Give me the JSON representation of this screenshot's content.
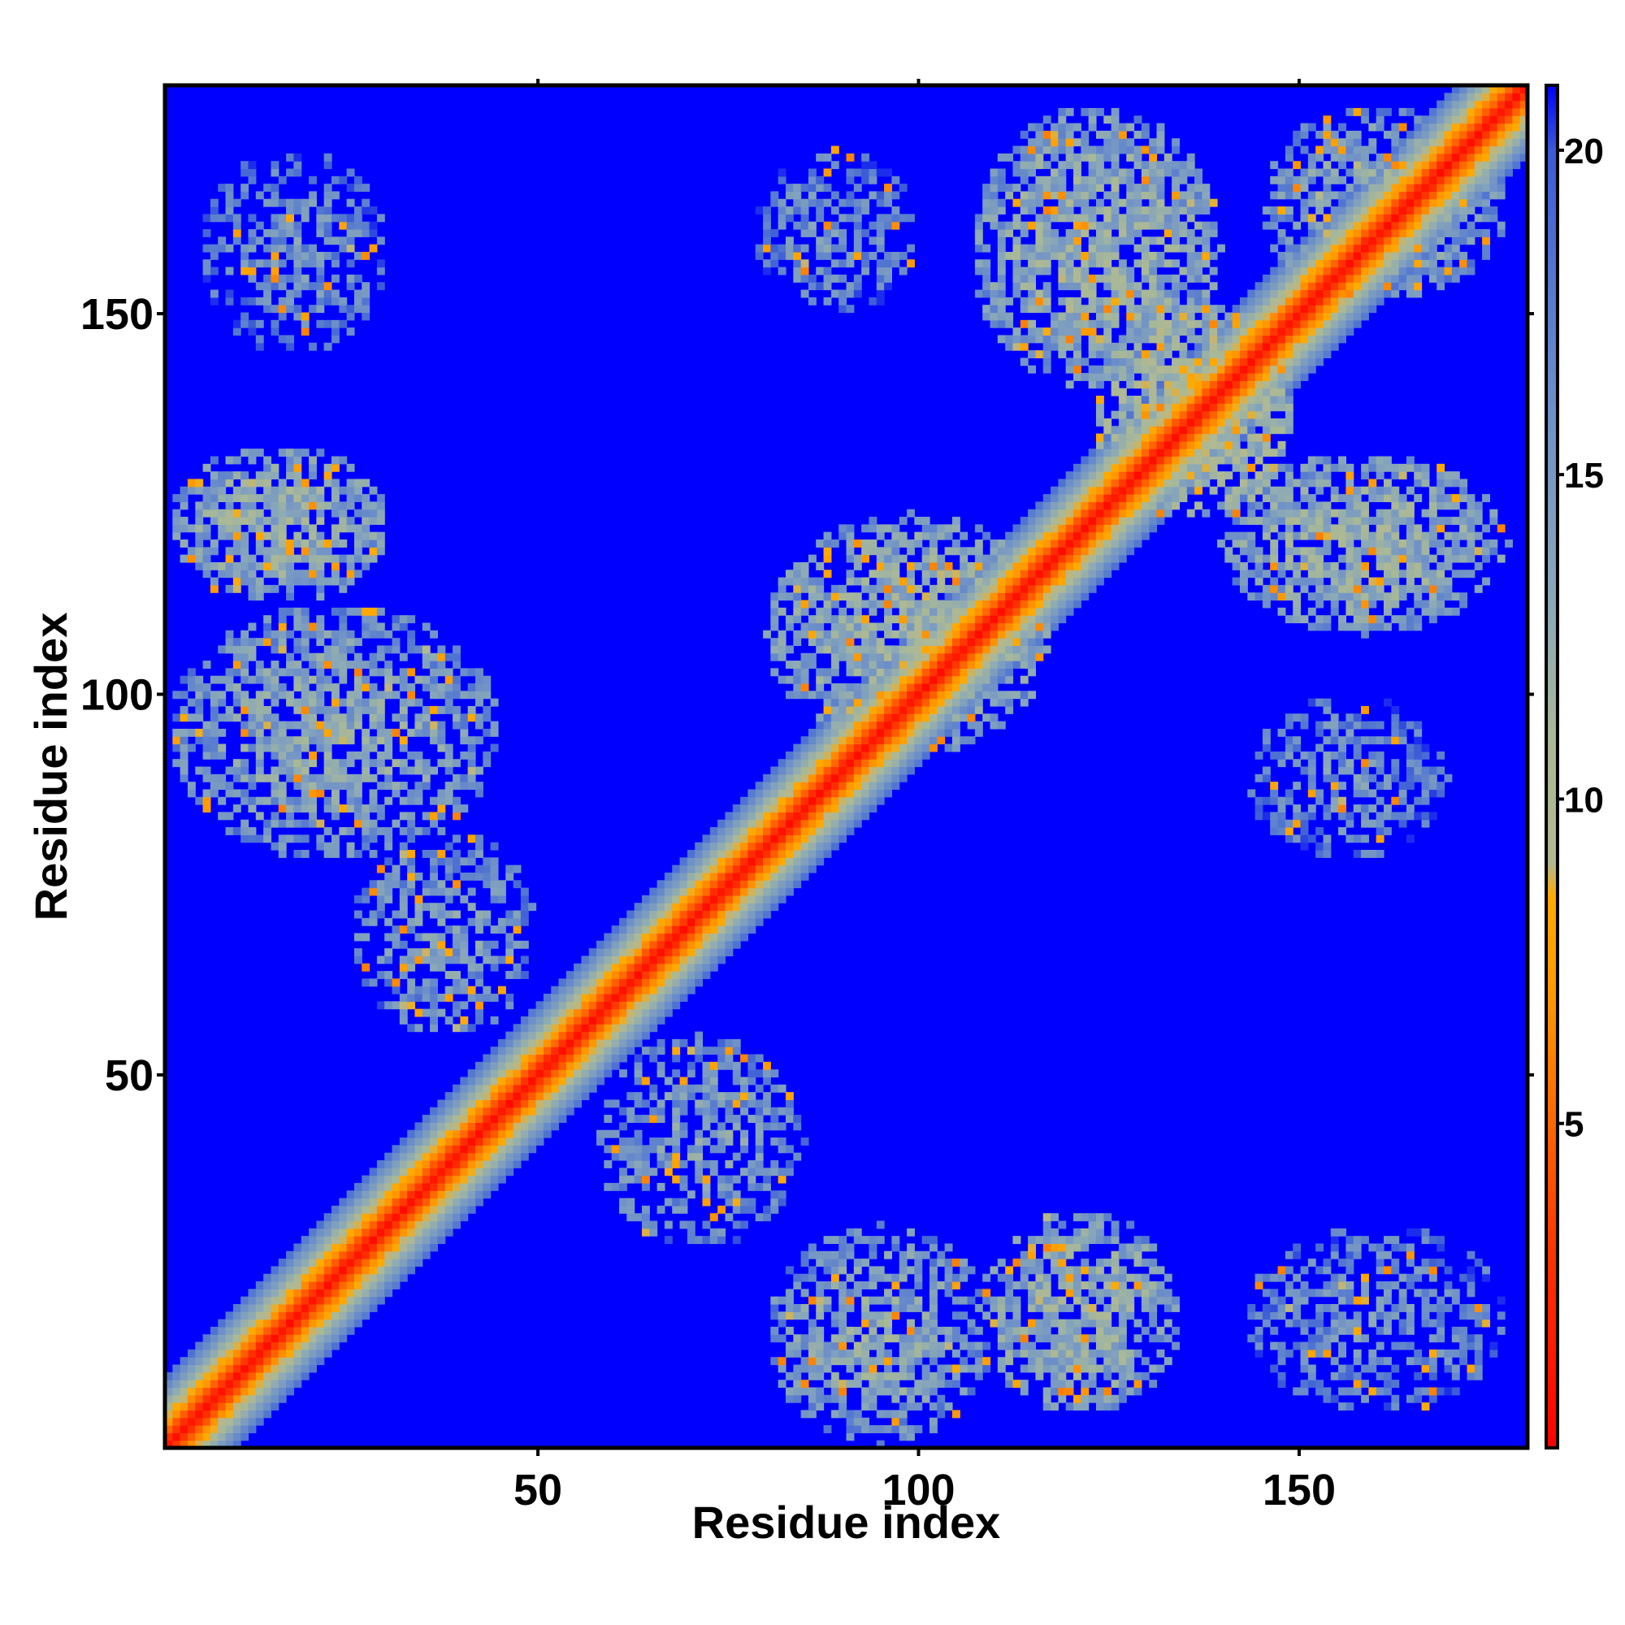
{
  "chart_data": {
    "type": "heatmap",
    "title": "",
    "xlabel": "Residue index",
    "ylabel": "Residue index",
    "xlim": [
      1,
      180
    ],
    "ylim": [
      1,
      180
    ],
    "x_ticks": [
      50,
      100,
      150
    ],
    "y_ticks": [
      50,
      100,
      150
    ],
    "colorbar": {
      "range": [
        0,
        21
      ],
      "ticks": [
        5,
        10,
        15,
        20
      ],
      "colors": [
        {
          "value": 0,
          "color": "#ff0000"
        },
        {
          "value": 3,
          "color": "#ff3300"
        },
        {
          "value": 5,
          "color": "#ff6600"
        },
        {
          "value": 7,
          "color": "#ff9900"
        },
        {
          "value": 8.5,
          "color": "#ffaa00"
        },
        {
          "value": 9,
          "color": "#b4b890"
        },
        {
          "value": 11,
          "color": "#a8b898"
        },
        {
          "value": 13,
          "color": "#8aa8b8"
        },
        {
          "value": 16,
          "color": "#6e90c8"
        },
        {
          "value": 18,
          "color": "#5478d0"
        },
        {
          "value": 20,
          "color": "#3a5ad8"
        },
        {
          "value": 21,
          "color": "#0000ff"
        }
      ]
    },
    "background_value": 21,
    "diagonal_band": {
      "center_value": 1,
      "width_residues": 9
    },
    "contact_regions": [
      {
        "x": [
          5,
          30
        ],
        "y": [
          145,
          172
        ],
        "mean_value": 15.5,
        "density": 0.55
      },
      {
        "x": [
          1,
          30
        ],
        "y": [
          112,
          133
        ],
        "mean_value": 12.5,
        "density": 0.85
      },
      {
        "x": [
          1,
          45
        ],
        "y": [
          78,
          112
        ],
        "mean_value": 13.5,
        "density": 0.75
      },
      {
        "x": [
          25,
          50
        ],
        "y": [
          55,
          82
        ],
        "mean_value": 14.5,
        "density": 0.6
      },
      {
        "x": [
          78,
          100
        ],
        "y": [
          150,
          172
        ],
        "mean_value": 15.5,
        "density": 0.6
      },
      {
        "x": [
          80,
          118
        ],
        "y": [
          92,
          124
        ],
        "mean_value": 12.5,
        "density": 0.8
      },
      {
        "x": [
          107,
          140
        ],
        "y": [
          140,
          178
        ],
        "mean_value": 12.5,
        "density": 0.85
      },
      {
        "x": [
          123,
          150
        ],
        "y": [
          123,
          152
        ],
        "mean_value": 10.5,
        "density": 0.85
      },
      {
        "x": [
          140,
          178
        ],
        "y": [
          108,
          132
        ],
        "mean_value": 12.5,
        "density": 0.85
      },
      {
        "x": [
          145,
          178
        ],
        "y": [
          152,
          178
        ],
        "mean_value": 13.5,
        "density": 0.75
      },
      {
        "x": [
          143,
          170
        ],
        "y": [
          78,
          100
        ],
        "mean_value": 15.5,
        "density": 0.6
      },
      {
        "x": [
          57,
          85
        ],
        "y": [
          27,
          55
        ],
        "mean_value": 14.5,
        "density": 0.6
      },
      {
        "x": [
          80,
          110
        ],
        "y": [
          1,
          30
        ],
        "mean_value": 13.5,
        "density": 0.75
      },
      {
        "x": [
          108,
          135
        ],
        "y": [
          5,
          32
        ],
        "mean_value": 12.5,
        "density": 0.8
      },
      {
        "x": [
          143,
          178
        ],
        "y": [
          5,
          30
        ],
        "mean_value": 15.5,
        "density": 0.55
      }
    ]
  }
}
